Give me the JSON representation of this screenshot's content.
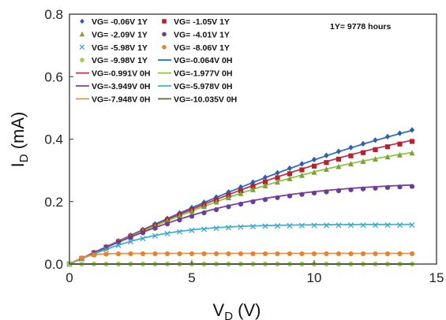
{
  "chart_data": {
    "type": "scatter",
    "xlabel_main": "V",
    "xlabel_sub": "D",
    "xlabel_unit": " (V)",
    "ylabel_main": "I",
    "ylabel_sub": "D",
    "ylabel_unit": " (mA)",
    "xlim": [
      0,
      15
    ],
    "ylim": [
      0,
      0.8
    ],
    "xticks": [
      "0",
      "5",
      "10",
      "15"
    ],
    "yticks": [
      "0.0",
      "0.2",
      "0.4",
      "0.6",
      "0.8"
    ],
    "annotation": "1Y= 9778 hours",
    "legend_placement": "top-left",
    "series_measured": [
      {
        "name": "VG= -0.06V 1Y",
        "marker": "diamond",
        "color": "#2e5fa8",
        "sat": 0.64,
        "k": 0.058
      },
      {
        "name": "VG= -1.05V 1Y",
        "marker": "square",
        "color": "#b8202b",
        "sat": 0.53,
        "k": 0.068
      },
      {
        "name": "VG= -2.09V 1Y",
        "marker": "triangle",
        "color": "#7aa33a",
        "sat": 0.435,
        "k": 0.082
      },
      {
        "name": "VG= -4.01V 1Y",
        "marker": "circle",
        "color": "#6a3d9a",
        "sat": 0.26,
        "k": 0.135
      },
      {
        "name": "VG= -5.98V 1Y",
        "marker": "x",
        "color": "#39a9c9",
        "sat": 0.125,
        "k": 0.26
      },
      {
        "name": "VG= -8.06V 1Y",
        "marker": "circle",
        "color": "#e8822c",
        "sat": 0.033,
        "k": 1.3
      },
      {
        "name": "VG= -9.98V 1Y",
        "marker": "circle",
        "color": "#9bd152",
        "sat": 0.0,
        "k": 1.0
      }
    ],
    "series_fit": [
      {
        "name": "VG=-0.064V 0H",
        "color": "#2f6fb6",
        "sat": 0.638,
        "k": 0.058
      },
      {
        "name": "VG=-0.991V 0H",
        "color": "#c0335f",
        "sat": 0.535,
        "k": 0.068
      },
      {
        "name": "VG=-1.977V 0H",
        "color": "#8cc63f",
        "sat": 0.437,
        "k": 0.082
      },
      {
        "name": "VG=-3.949V 0H",
        "color": "#7b3fa0",
        "sat": 0.265,
        "k": 0.135
      },
      {
        "name": "VG=-5.978V 0H",
        "color": "#3bb3d6",
        "sat": 0.127,
        "k": 0.26
      },
      {
        "name": "VG=-7.948V 0H",
        "color": "#f0923a",
        "sat": 0.034,
        "k": 1.3
      },
      {
        "name": "VG=-10.035V 0H",
        "color": "#556b2f",
        "sat": 0.0,
        "k": 1.0
      }
    ]
  }
}
